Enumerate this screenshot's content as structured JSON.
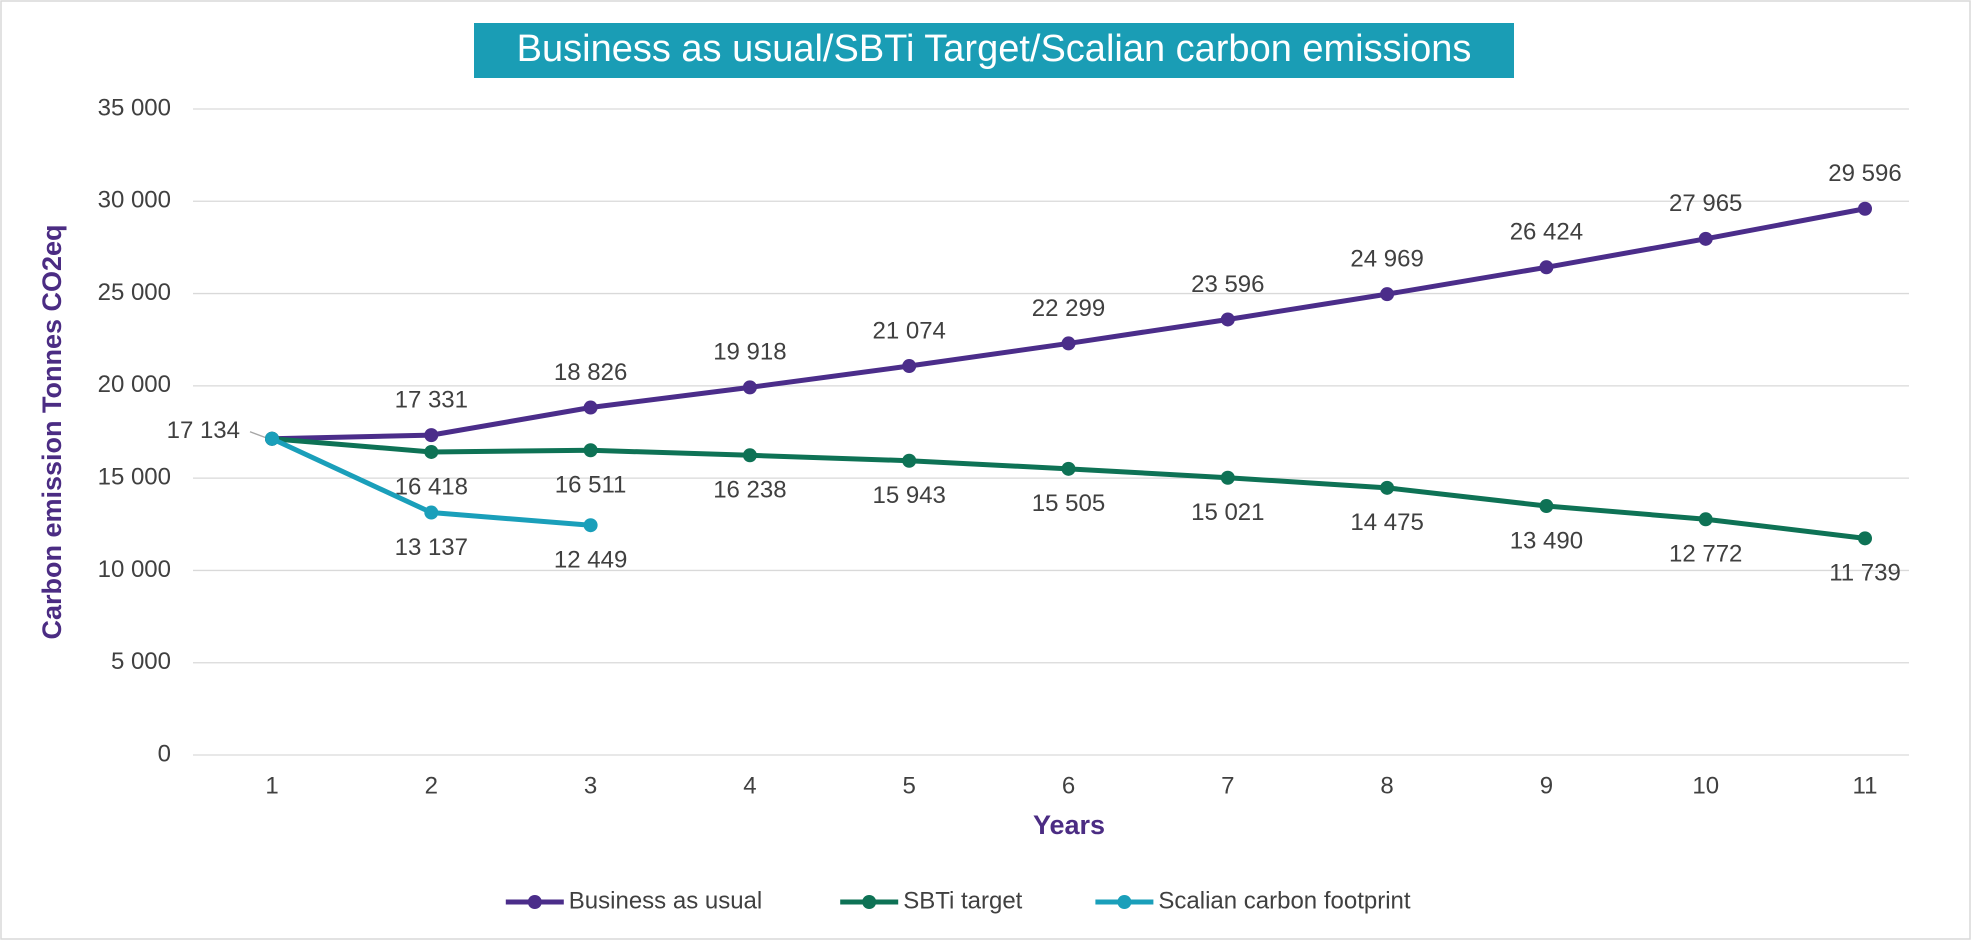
{
  "chart_data": {
    "type": "line",
    "title": "Business as usual/SBTi Target/Scalian carbon emissions",
    "x_label": "Years",
    "y_label": "Carbon emission Tonnes CO2eq",
    "categories": [
      "1",
      "2",
      "3",
      "4",
      "5",
      "6",
      "7",
      "8",
      "9",
      "10",
      "11"
    ],
    "series": [
      {
        "name": "Business as usual",
        "color": "#4b2d8a",
        "values": [
          17134,
          17331,
          18826,
          19918,
          21074,
          22299,
          23596,
          24969,
          26424,
          27965,
          29596
        ],
        "value_labels": [
          "17 134",
          "17 331",
          "18 826",
          "19 918",
          "21 074",
          "22 299",
          "23 596",
          "24 969",
          "26 424",
          "27 965",
          "29 596"
        ]
      },
      {
        "name": "SBTi target",
        "color": "#0e7255",
        "values": [
          17134,
          16418,
          16511,
          16238,
          15943,
          15505,
          15021,
          14475,
          13490,
          12772,
          11739
        ],
        "value_labels": [
          null,
          "16 418",
          "16 511",
          "16 238",
          "15 943",
          "15 505",
          "15 021",
          "14 475",
          "13 490",
          "12 772",
          "11 739"
        ]
      },
      {
        "name": "Scalian carbon footprint",
        "color": "#1a9fba",
        "values": [
          17134,
          13137,
          12449,
          null,
          null,
          null,
          null,
          null,
          null,
          null,
          null
        ],
        "value_labels": [
          null,
          "13 137",
          "12 449",
          null,
          null,
          null,
          null,
          null,
          null,
          null,
          null
        ]
      }
    ],
    "ylim": [
      0,
      35000
    ],
    "yticks": [
      0,
      {
        "value": 5000,
        "label": "5 000"
      },
      {
        "value": 10000,
        "label": "10 000"
      },
      {
        "value": 15000,
        "label": "15 000"
      },
      {
        "value": 20000,
        "label": "20 000"
      },
      {
        "value": 25000,
        "label": "25 000"
      },
      {
        "value": 30000,
        "label": "30 000"
      },
      {
        "value": 35000,
        "label": "35 000"
      }
    ],
    "grid": true,
    "legend": "bottom"
  }
}
